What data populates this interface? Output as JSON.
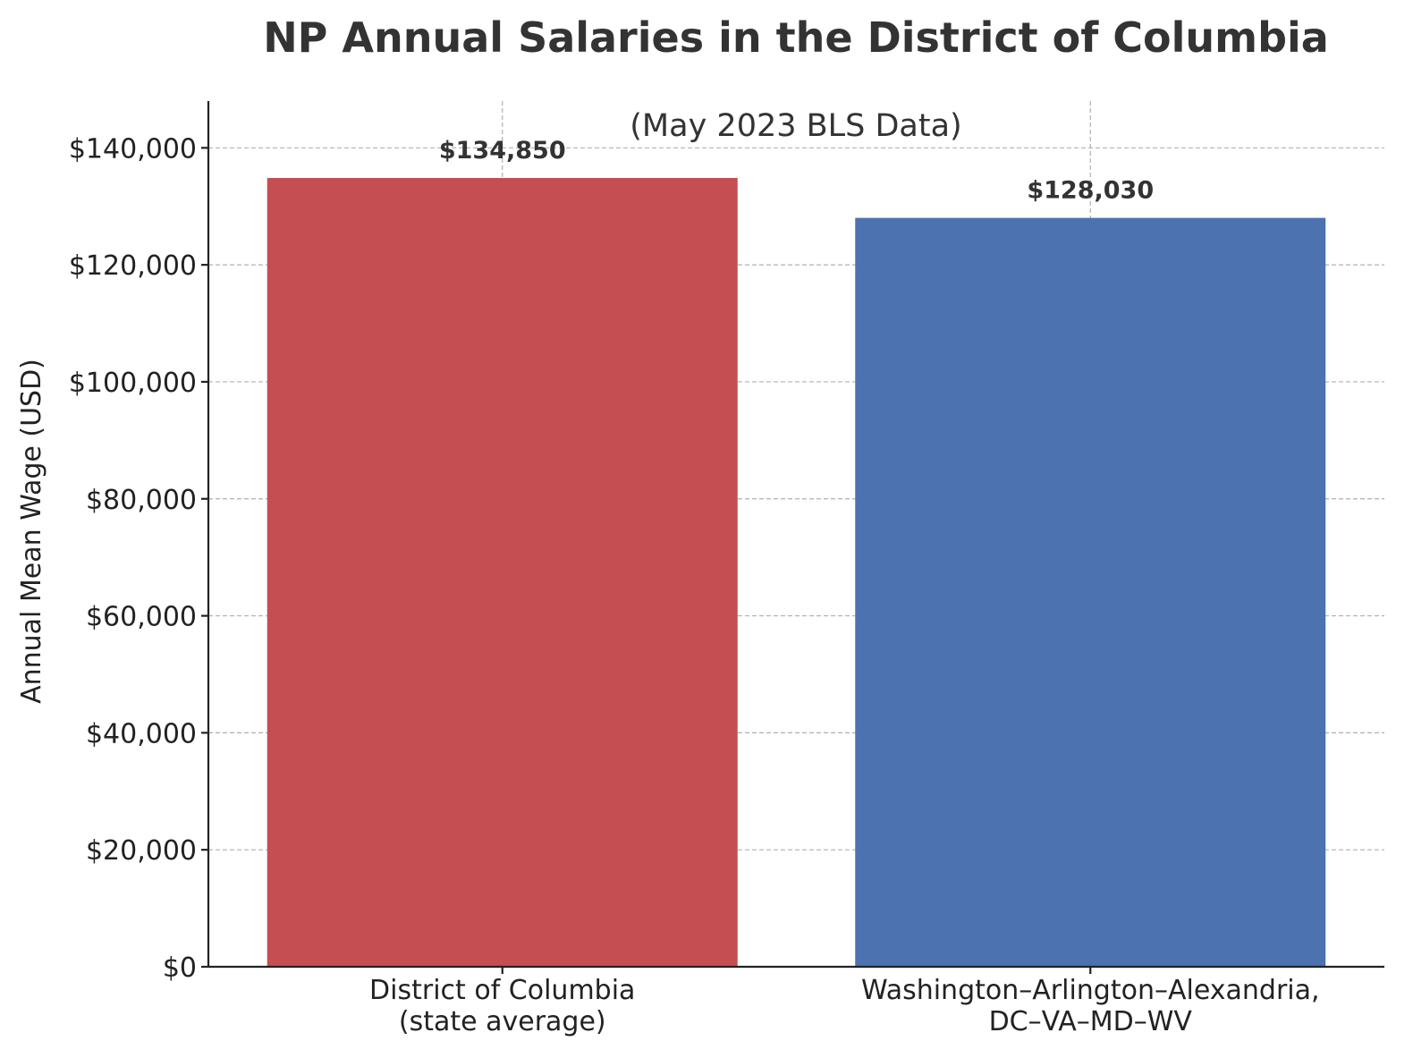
{
  "chart_data": {
    "type": "bar",
    "title": "NP Annual Salaries in the District of Columbia",
    "subtitle": "(May 2023 BLS Data)",
    "xlabel": "",
    "ylabel": "Annual Mean Wage (USD)",
    "ylim": [
      0,
      148000
    ],
    "yticks": [
      0,
      20000,
      40000,
      60000,
      80000,
      100000,
      120000,
      140000
    ],
    "ytick_labels": [
      "$0",
      "$20,000",
      "$40,000",
      "$60,000",
      "$80,000",
      "$100,000",
      "$120,000",
      "$140,000"
    ],
    "categories": [
      [
        "District of Columbia",
        "(state average)"
      ],
      [
        "Washington–Arlington–Alexandria,",
        "DC–VA–MD–WV"
      ]
    ],
    "values": [
      134850,
      128030
    ],
    "data_labels": [
      "$134,850",
      "$128,030"
    ],
    "colors": [
      "#C44E52",
      "#4C72B0"
    ],
    "grid": true
  }
}
